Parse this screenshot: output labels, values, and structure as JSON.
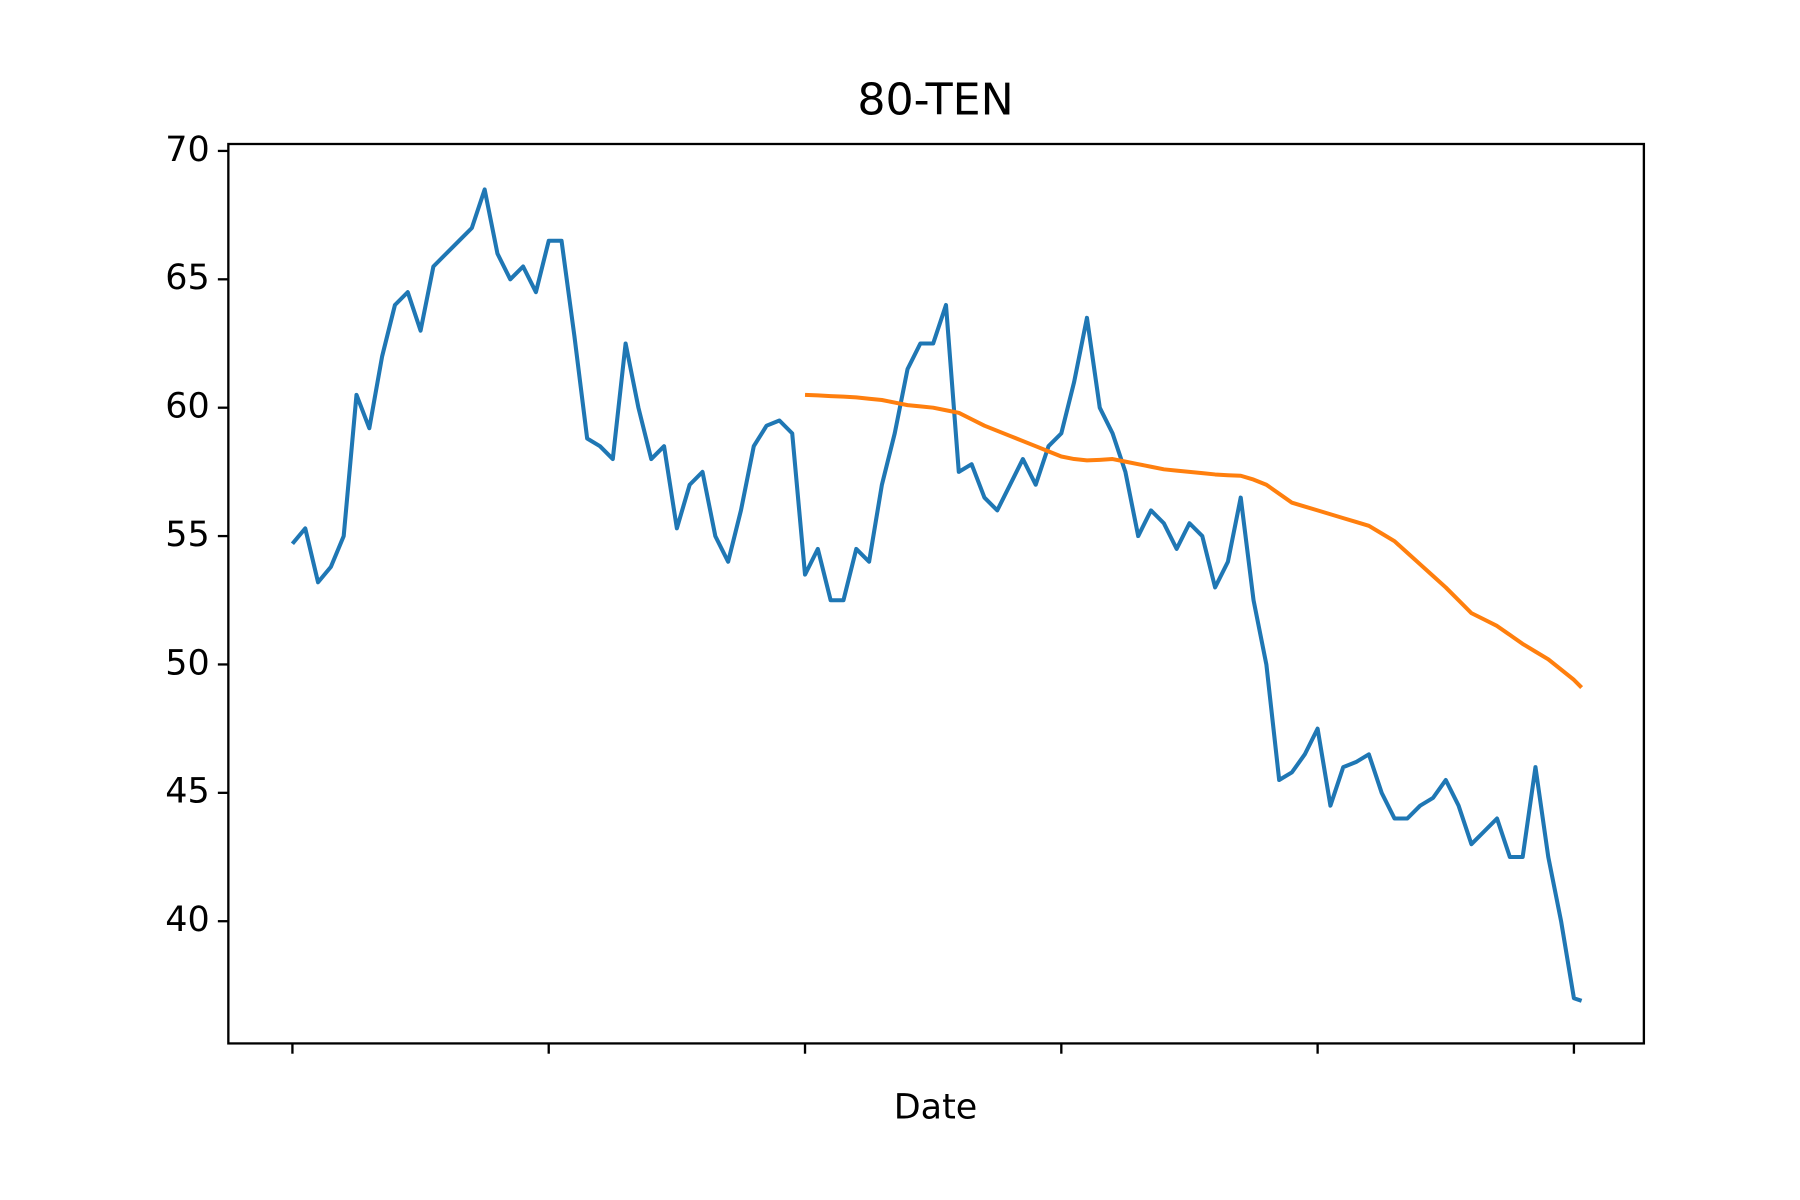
{
  "chart_data": {
    "type": "line",
    "title": "80-TEN",
    "x_label": "Date",
    "x": [
      0,
      5,
      10,
      15,
      20,
      25,
      30,
      35,
      40,
      45,
      50,
      55,
      60,
      65,
      70,
      75,
      80,
      85,
      90,
      95,
      100,
      105,
      110,
      115,
      120,
      125,
      130,
      135,
      140,
      145,
      150,
      155,
      160,
      165,
      170,
      175,
      180,
      185,
      190,
      195,
      200,
      205,
      210,
      215,
      220,
      225,
      230,
      235,
      240,
      245,
      250,
      255,
      260,
      265,
      270,
      275,
      280,
      285,
      290,
      295,
      300,
      305,
      310,
      315,
      320,
      325,
      330,
      335,
      340,
      345,
      350,
      355,
      360,
      365,
      370,
      375,
      380,
      385,
      390,
      395,
      400,
      405,
      410,
      415,
      420,
      425,
      430,
      435,
      440,
      445,
      450,
      455,
      460,
      465,
      470,
      475,
      480,
      485,
      490,
      495,
      500,
      503
    ],
    "series": [
      {
        "color": "#1f77b4",
        "values": [
          54.7,
          55.3,
          53.2,
          53.8,
          55.0,
          60.5,
          59.2,
          62.0,
          64.0,
          64.5,
          63.0,
          65.5,
          66.0,
          66.5,
          67.0,
          68.5,
          66.0,
          65.0,
          65.5,
          64.5,
          66.5,
          66.5,
          62.8,
          58.8,
          58.5,
          58.0,
          62.5,
          60.0,
          58.0,
          58.5,
          55.3,
          57.0,
          57.5,
          55.0,
          54.0,
          56.0,
          58.5,
          59.3,
          59.5,
          59.0,
          53.5,
          54.5,
          52.5,
          52.5,
          54.5,
          54.0,
          57.0,
          59.0,
          61.5,
          62.5,
          62.5,
          64.0,
          57.5,
          57.8,
          56.5,
          56.0,
          57.0,
          58.0,
          57.0,
          58.5,
          59.0,
          61.0,
          63.5,
          60.0,
          59.0,
          57.5,
          55.0,
          56.0,
          55.5,
          54.5,
          55.5,
          55.0,
          53.0,
          54.0,
          56.5,
          52.5,
          50.0,
          45.5,
          45.8,
          46.5,
          47.5,
          44.5,
          46.0,
          46.2,
          46.5,
          45.0,
          44.0,
          44.0,
          44.5,
          44.8,
          45.5,
          44.5,
          43.0,
          43.5,
          44.0,
          42.5,
          42.5,
          46.0,
          42.5,
          40.0,
          37.0,
          36.9
        ]
      },
      {
        "color": "#ff7f0e",
        "values": [
          null,
          null,
          null,
          null,
          null,
          null,
          null,
          null,
          null,
          null,
          null,
          null,
          null,
          null,
          null,
          null,
          null,
          null,
          null,
          null,
          null,
          null,
          null,
          null,
          null,
          null,
          null,
          null,
          null,
          null,
          null,
          null,
          null,
          null,
          null,
          null,
          null,
          null,
          null,
          null,
          60.5,
          60.48,
          60.45,
          60.43,
          60.4,
          60.35,
          60.3,
          60.2,
          60.1,
          60.05,
          60.0,
          59.9,
          59.8,
          59.55,
          59.3,
          59.1,
          58.9,
          58.7,
          58.5,
          58.3,
          58.1,
          58.0,
          57.95,
          57.97,
          58.0,
          57.9,
          57.8,
          57.7,
          57.6,
          57.55,
          57.5,
          57.45,
          57.4,
          57.37,
          57.35,
          57.2,
          57.0,
          56.65,
          56.3,
          56.15,
          56.0,
          55.85,
          55.7,
          55.55,
          55.4,
          55.1,
          54.8,
          54.35,
          53.9,
          53.45,
          53.0,
          52.5,
          52.0,
          51.75,
          51.5,
          51.15,
          50.8,
          50.5,
          50.2,
          49.8,
          49.4,
          49.1
        ]
      }
    ],
    "xlim": [
      -25,
      527.3
    ],
    "xticks": [
      0,
      100,
      200,
      300,
      400,
      500
    ],
    "ylim": [
      35.24,
      70.27
    ],
    "yticks": [
      40,
      45,
      50,
      55,
      60,
      65,
      70
    ]
  }
}
